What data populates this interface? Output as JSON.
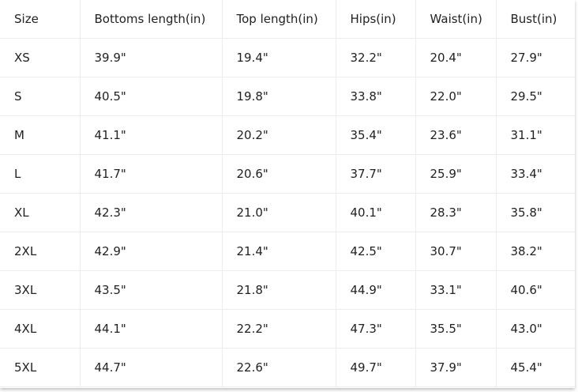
{
  "table": {
    "header": [
      "Size",
      "Bottoms length(in)",
      "Top length(in)",
      "Hips(in)",
      "Waist(in)",
      "Bust(in)"
    ],
    "rows": [
      [
        "XS",
        "39.9\"",
        "19.4\"",
        "32.2\"",
        "20.4\"",
        "27.9\""
      ],
      [
        "S",
        "40.5\"",
        "19.8\"",
        "33.8\"",
        "22.0\"",
        "29.5\""
      ],
      [
        "M",
        "41.1\"",
        "20.2\"",
        "35.4\"",
        "23.6\"",
        "31.1\""
      ],
      [
        "L",
        "41.7\"",
        "20.6\"",
        "37.7\"",
        "25.9\"",
        "33.4\""
      ],
      [
        "XL",
        "42.3\"",
        "21.0\"",
        "40.1\"",
        "28.3\"",
        "35.8\""
      ],
      [
        "2XL",
        "42.9\"",
        "21.4\"",
        "42.5\"",
        "30.7\"",
        "38.2\""
      ],
      [
        "3XL",
        "43.5\"",
        "21.8\"",
        "44.9\"",
        "33.1\"",
        "40.6\""
      ],
      [
        "4XL",
        "44.1\"",
        "22.2\"",
        "47.3\"",
        "35.5\"",
        "43.0\""
      ],
      [
        "5XL",
        "44.7\"",
        "22.6\"",
        "49.7\"",
        "37.9\"",
        "45.4\""
      ]
    ]
  }
}
